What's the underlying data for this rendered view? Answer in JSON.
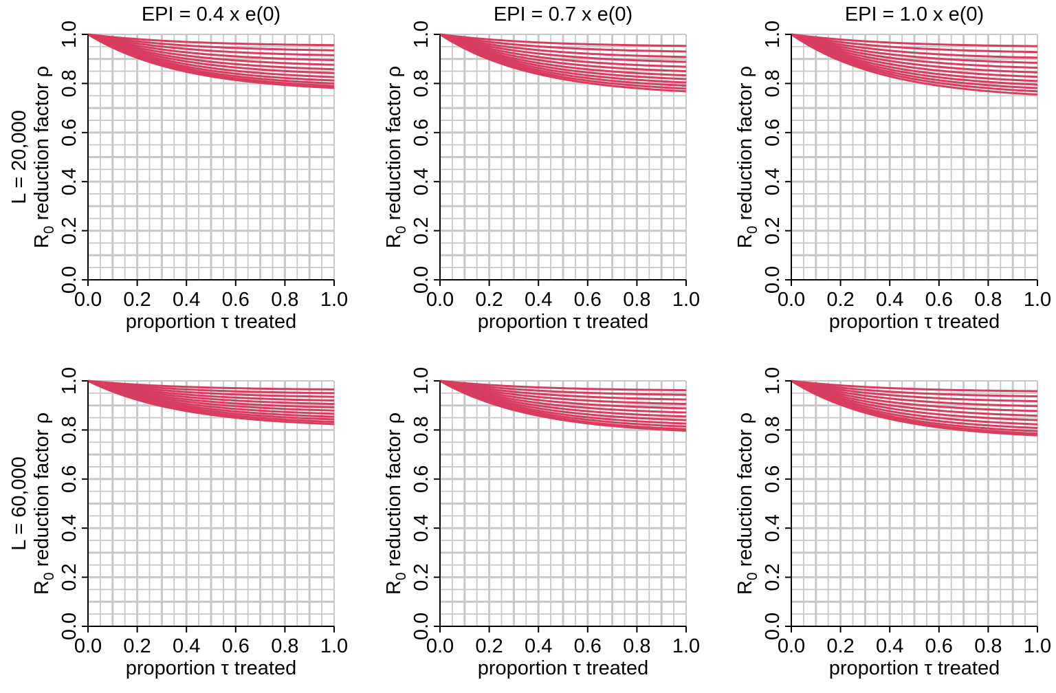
{
  "chart_data": {
    "type": "line",
    "column_titles": [
      "EPI = 0.4 x e(0)",
      "EPI = 0.7 x e(0)",
      "EPI = 1.0 x e(0)"
    ],
    "row_labels": [
      "L = 20,000",
      "L = 60,000"
    ],
    "xlabel": "proportion τ treated",
    "ylabel_main": "R",
    "ylabel_sub": "0",
    "ylabel_rest": " reduction factor ρ",
    "xlim": [
      0,
      1
    ],
    "ylim": [
      0,
      1
    ],
    "ticks": [
      0.0,
      0.2,
      0.4,
      0.6,
      0.8,
      1.0
    ],
    "tick_labels": [
      "0.0",
      "0.2",
      "0.4",
      "0.6",
      "0.8",
      "1.0"
    ],
    "grid": true,
    "grid_major": 0.1,
    "grid_minor": 0.05,
    "colors": {
      "line": "#d83c5e",
      "grid": "#c8c8c8",
      "axis": "#000000"
    },
    "panels": [
      {
        "row": 0,
        "col": 0,
        "end_values": [
          0.956,
          0.935,
          0.915,
          0.895,
          0.876,
          0.858,
          0.842,
          0.826,
          0.812,
          0.8,
          0.79,
          0.782
        ]
      },
      {
        "row": 0,
        "col": 1,
        "end_values": [
          0.953,
          0.93,
          0.908,
          0.888,
          0.868,
          0.85,
          0.833,
          0.818,
          0.804,
          0.791,
          0.779,
          0.768
        ]
      },
      {
        "row": 0,
        "col": 2,
        "end_values": [
          0.952,
          0.928,
          0.905,
          0.884,
          0.864,
          0.845,
          0.827,
          0.81,
          0.795,
          0.781,
          0.768,
          0.755
        ]
      },
      {
        "row": 1,
        "col": 0,
        "end_values": [
          0.965,
          0.95,
          0.935,
          0.92,
          0.906,
          0.892,
          0.879,
          0.866,
          0.854,
          0.843,
          0.833,
          0.824
        ]
      },
      {
        "row": 1,
        "col": 1,
        "end_values": [
          0.962,
          0.943,
          0.924,
          0.906,
          0.888,
          0.871,
          0.855,
          0.84,
          0.826,
          0.814,
          0.803,
          0.797
        ]
      },
      {
        "row": 1,
        "col": 2,
        "end_values": [
          0.958,
          0.937,
          0.917,
          0.897,
          0.877,
          0.858,
          0.84,
          0.823,
          0.808,
          0.795,
          0.785,
          0.778
        ]
      }
    ]
  }
}
